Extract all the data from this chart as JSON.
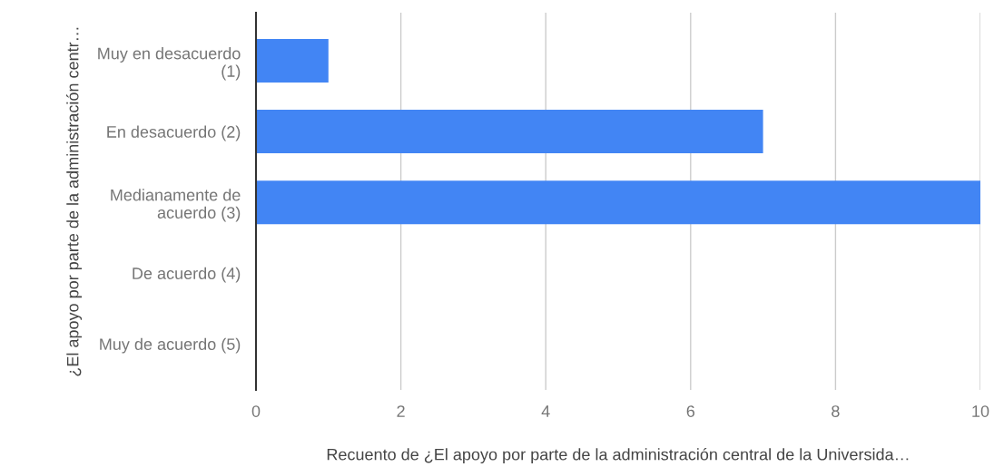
{
  "chart_data": {
    "type": "bar",
    "orientation": "horizontal",
    "categories": [
      "Muy en desacuerdo\n(1)",
      "En desacuerdo (2)",
      "Medianamente de\nacuerdo (3)",
      "De acuerdo (4)",
      "Muy de acuerdo (5)"
    ],
    "values": [
      1,
      7,
      10,
      0,
      0
    ],
    "color": "#4285f4",
    "xlim": [
      0,
      10
    ],
    "xticks": [
      0,
      2,
      4,
      6,
      8,
      10
    ],
    "grid": "x",
    "xlabel": "Recuento de ¿El apoyo por parte de la administración central de la Universida…",
    "ylabel": "¿El apoyo por parte de la administración centr…"
  }
}
